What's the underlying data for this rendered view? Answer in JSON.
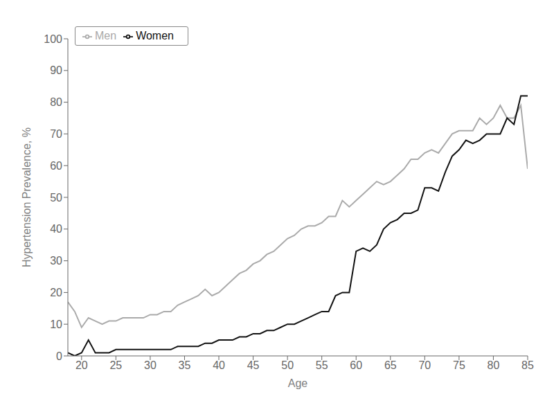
{
  "chart_data": {
    "type": "line",
    "xlabel": "Age",
    "ylabel": "Hypertension Prevalence, %",
    "x": [
      18,
      19,
      20,
      21,
      22,
      23,
      24,
      25,
      26,
      27,
      28,
      29,
      30,
      31,
      32,
      33,
      34,
      35,
      36,
      37,
      38,
      39,
      40,
      41,
      42,
      43,
      44,
      45,
      46,
      47,
      48,
      49,
      50,
      51,
      52,
      53,
      54,
      55,
      56,
      57,
      58,
      59,
      60,
      61,
      62,
      63,
      64,
      65,
      66,
      67,
      68,
      69,
      70,
      71,
      72,
      73,
      74,
      75,
      76,
      77,
      78,
      79,
      80,
      81,
      82,
      83,
      84,
      85
    ],
    "series": [
      {
        "name": "Men",
        "color": "#aaaaaa",
        "values": [
          17,
          14,
          9,
          12,
          11,
          10,
          11,
          11,
          12,
          12,
          12,
          12,
          13,
          13,
          14,
          14,
          16,
          17,
          18,
          19,
          21,
          19,
          20,
          22,
          24,
          26,
          27,
          29,
          30,
          32,
          33,
          35,
          37,
          38,
          40,
          41,
          41,
          42,
          44,
          44,
          49,
          47,
          49,
          51,
          53,
          55,
          54,
          55,
          57,
          59,
          62,
          62,
          64,
          65,
          64,
          67,
          70,
          71,
          71,
          71,
          75,
          73,
          75,
          79,
          75,
          75,
          79,
          59
        ]
      },
      {
        "name": "Women",
        "color": "#111111",
        "values": [
          1,
          0,
          1,
          5,
          1,
          1,
          1,
          2,
          2,
          2,
          2,
          2,
          2,
          2,
          2,
          2,
          3,
          3,
          3,
          3,
          4,
          4,
          5,
          5,
          5,
          6,
          6,
          7,
          7,
          8,
          8,
          9,
          10,
          10,
          11,
          12,
          13,
          14,
          14,
          19,
          20,
          20,
          33,
          34,
          33,
          35,
          40,
          42,
          43,
          45,
          45,
          46,
          53,
          53,
          52,
          58,
          63,
          65,
          68,
          67,
          68,
          70,
          70,
          70,
          75,
          73,
          82,
          82
        ]
      }
    ],
    "xlim": [
      18,
      85
    ],
    "ylim": [
      0,
      100
    ],
    "xticks": [
      20,
      25,
      30,
      35,
      40,
      45,
      50,
      55,
      60,
      65,
      70,
      75,
      80,
      85
    ],
    "yticks": [
      0,
      10,
      20,
      30,
      40,
      50,
      60,
      70,
      80,
      90,
      100
    ],
    "grid": false,
    "legend": "upper left"
  }
}
